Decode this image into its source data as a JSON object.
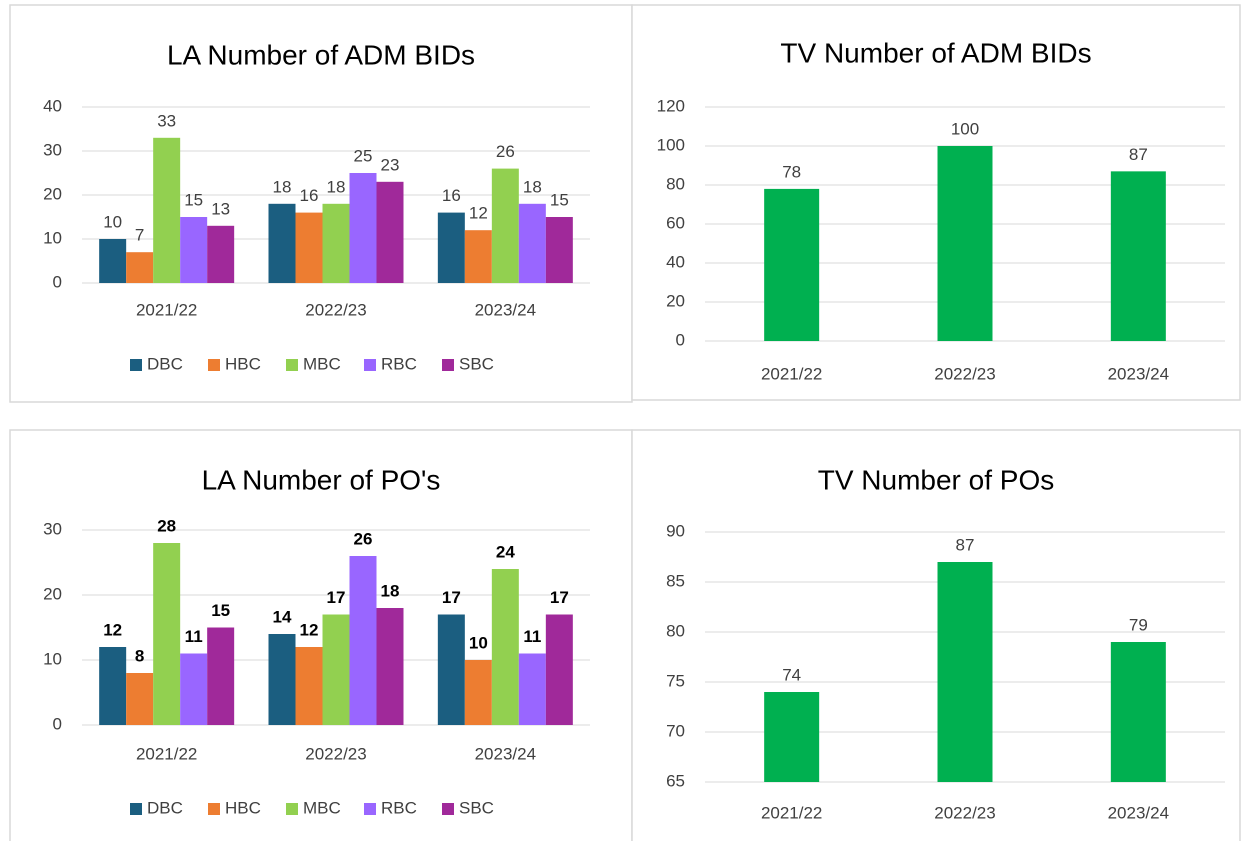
{
  "chart_data": [
    {
      "type": "bar",
      "title": "LA Number of ADM BIDs",
      "categories": [
        "2021/22",
        "2022/23",
        "2023/24"
      ],
      "series": [
        {
          "name": "DBC",
          "color": "#1b5e80",
          "values": [
            10,
            18,
            16
          ]
        },
        {
          "name": "HBC",
          "color": "#ed7d31",
          "values": [
            7,
            16,
            12
          ]
        },
        {
          "name": "MBC",
          "color": "#92d050",
          "values": [
            33,
            18,
            26
          ]
        },
        {
          "name": "RBC",
          "color": "#9966ff",
          "values": [
            15,
            25,
            18
          ]
        },
        {
          "name": "SBC",
          "color": "#a0299a",
          "values": [
            13,
            23,
            15
          ]
        }
      ],
      "ylim": [
        0,
        40
      ],
      "yticks": [
        0,
        10,
        20,
        30,
        40
      ],
      "grid": true,
      "legend": "bottom",
      "label_bold": false
    },
    {
      "type": "bar",
      "title": "TV Number of ADM BIDs",
      "categories": [
        "2021/22",
        "2022/23",
        "2023/24"
      ],
      "values": [
        78,
        100,
        87
      ],
      "color": "#00b050",
      "ylim": [
        0,
        120
      ],
      "yticks": [
        0,
        20,
        40,
        60,
        80,
        100,
        120
      ],
      "grid": true,
      "label_bold": false
    },
    {
      "type": "bar",
      "title": "LA Number of PO's",
      "categories": [
        "2021/22",
        "2022/23",
        "2023/24"
      ],
      "series": [
        {
          "name": "DBC",
          "color": "#1b5e80",
          "values": [
            12,
            14,
            17
          ]
        },
        {
          "name": "HBC",
          "color": "#ed7d31",
          "values": [
            8,
            12,
            10
          ]
        },
        {
          "name": "MBC",
          "color": "#92d050",
          "values": [
            28,
            17,
            24
          ]
        },
        {
          "name": "RBC",
          "color": "#9966ff",
          "values": [
            11,
            26,
            11
          ]
        },
        {
          "name": "SBC",
          "color": "#a0299a",
          "values": [
            15,
            18,
            17
          ]
        }
      ],
      "ylim": [
        0,
        30
      ],
      "yticks": [
        0,
        10,
        20,
        30
      ],
      "grid": true,
      "legend": "bottom",
      "label_bold": true
    },
    {
      "type": "bar",
      "title": "TV Number of POs",
      "categories": [
        "2021/22",
        "2022/23",
        "2023/24"
      ],
      "values": [
        74,
        87,
        79
      ],
      "color": "#00b050",
      "ylim": [
        65,
        90
      ],
      "yticks": [
        65,
        70,
        75,
        80,
        85,
        90
      ],
      "grid": true,
      "label_bold": false
    }
  ]
}
